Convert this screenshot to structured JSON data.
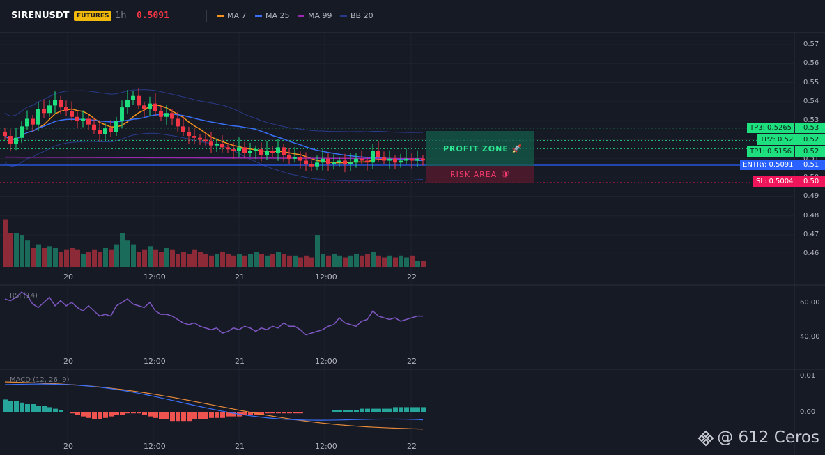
{
  "header": {
    "symbol": "SIRENUSDT",
    "badge": "FUTURES",
    "timeframe": "1h",
    "price": "0.5091",
    "legend": [
      {
        "label": "MA 7",
        "color": "#f7931a"
      },
      {
        "label": "MA 25",
        "color": "#3a6ff7"
      },
      {
        "label": "MA 99",
        "color": "#9c27b0"
      },
      {
        "label": "BB 20",
        "color": "#2a3a8a"
      }
    ]
  },
  "colors": {
    "up": "#1ee07f",
    "down": "#f23645",
    "vol_up": "#1b6b5a",
    "vol_down": "#8c2a38",
    "background": "#161a25"
  },
  "price_axis": [
    "0.57",
    "0.56",
    "0.55",
    "0.54",
    "0.53",
    "0.52",
    "0.51",
    "0.50",
    "0.49",
    "0.48",
    "0.47",
    "0.46"
  ],
  "time_axis": [
    "20",
    "12:00",
    "21",
    "12:00",
    "22"
  ],
  "levels": {
    "tp3": "TP3: 0.5265",
    "tp3_axis": "0.53",
    "tp2": "TP2: 0.52",
    "tp2_axis": "0.52",
    "tp1": "TP1: 0.5156",
    "tp1_axis": "0.52",
    "entry": "ENTRY: 0.5091",
    "entry_axis": "0.51",
    "sl": "SL: 0.5004",
    "sl_axis": "0.50"
  },
  "zones": {
    "profit": "PROFIT ZONE 🚀",
    "risk": "RISK AREA 🛡"
  },
  "rsi": {
    "label": "RSI (14)",
    "axis": [
      "60.00",
      "40.00"
    ]
  },
  "macd": {
    "label": "MACD (12, 26, 9)",
    "axis": [
      "0.01",
      "0.00"
    ]
  },
  "watermark": "@ 612 Ceros"
}
